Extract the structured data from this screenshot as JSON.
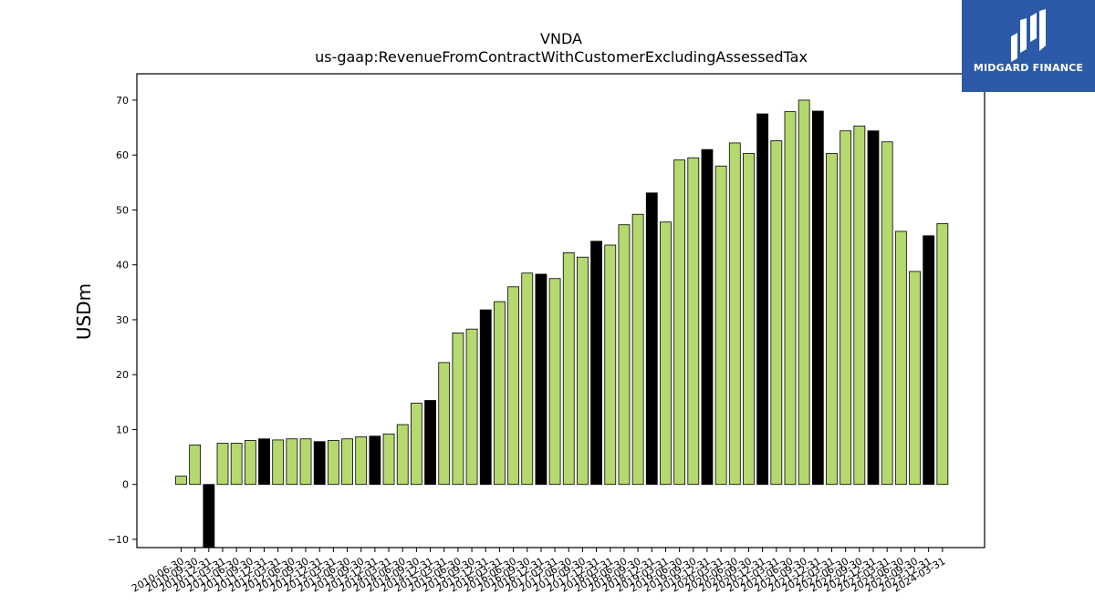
{
  "logo": {
    "text": "MIDGARD FINANCE"
  },
  "chart_data": {
    "type": "bar",
    "title": "VNDA",
    "subtitle": "us-gaap:RevenueFromContractWithCustomerExcludingAssessedTax",
    "xlabel": "",
    "ylabel": "USDm",
    "ylim": [
      -11.5,
      74.8
    ],
    "yticks": [
      -10,
      0,
      10,
      20,
      30,
      40,
      50,
      60,
      70
    ],
    "grid": false,
    "colors": {
      "quarter": "#b5d96e",
      "fiscal_q4": "#000000",
      "edge": "#000000"
    },
    "categories": [
      "2010-06-30",
      "2010-09-30",
      "2010-12-31",
      "2011-03-31",
      "2011-06-30",
      "2011-09-30",
      "2011-12-31",
      "2012-03-31",
      "2012-06-30",
      "2012-09-30",
      "2012-12-31",
      "2013-03-31",
      "2013-06-30",
      "2013-09-30",
      "2013-12-31",
      "2014-03-31",
      "2014-06-30",
      "2014-09-30",
      "2014-12-31",
      "2015-03-31",
      "2015-06-30",
      "2015-09-30",
      "2015-12-31",
      "2016-03-31",
      "2016-06-30",
      "2016-09-30",
      "2016-12-31",
      "2017-03-31",
      "2017-06-30",
      "2017-09-30",
      "2017-12-31",
      "2018-03-31",
      "2018-06-30",
      "2018-09-30",
      "2018-12-31",
      "2019-03-31",
      "2019-06-30",
      "2019-09-30",
      "2019-12-31",
      "2020-03-31",
      "2020-06-30",
      "2020-09-30",
      "2020-12-31",
      "2021-03-31",
      "2021-06-30",
      "2021-09-30",
      "2021-12-31",
      "2022-03-31",
      "2022-06-30",
      "2022-09-30",
      "2022-12-31",
      "2023-03-31",
      "2023-06-30",
      "2023-09-30",
      "2023-12-31",
      "2024-03-31"
    ],
    "values": [
      1.5,
      7.2,
      -11.5,
      7.5,
      7.5,
      8.0,
      8.3,
      8.1,
      8.3,
      8.3,
      7.8,
      8.0,
      8.3,
      8.7,
      8.8,
      9.2,
      10.9,
      14.8,
      15.3,
      22.2,
      27.6,
      28.3,
      31.8,
      33.3,
      36.0,
      38.5,
      38.3,
      37.5,
      42.2,
      41.4,
      44.3,
      43.6,
      47.3,
      49.2,
      53.1,
      47.8,
      59.1,
      59.5,
      61.0,
      58.0,
      62.2,
      60.3,
      67.5,
      62.6,
      67.9,
      70.0,
      68.0,
      60.3,
      64.4,
      65.3,
      64.4,
      62.4,
      46.1,
      38.8,
      45.3,
      47.5
    ],
    "highlight": [
      "2010-12-31",
      "2011-12-31",
      "2012-12-31",
      "2013-12-31",
      "2014-12-31",
      "2015-12-31",
      "2016-12-31",
      "2017-12-31",
      "2018-12-31",
      "2019-12-31",
      "2020-12-31",
      "2021-12-31",
      "2022-12-31",
      "2023-12-31"
    ]
  }
}
